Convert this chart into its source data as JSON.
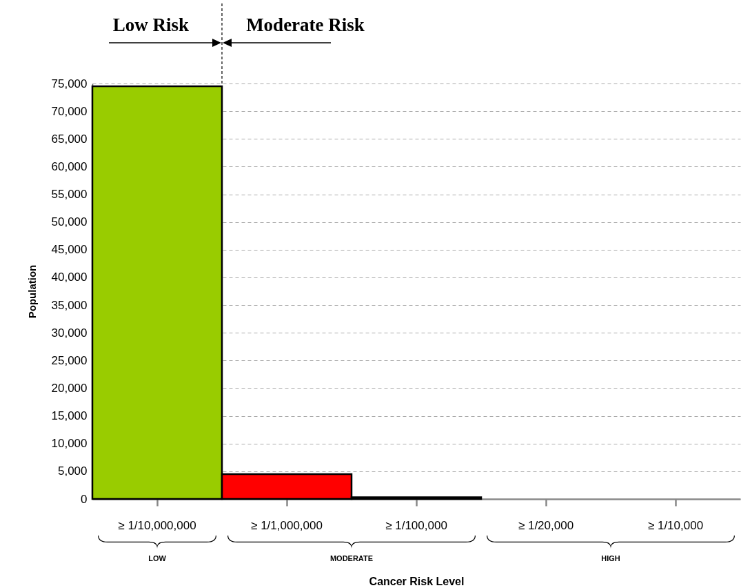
{
  "chart_data": {
    "type": "bar",
    "xlabel": "Cancer Risk Level",
    "ylabel": "Population",
    "categories": [
      "≥ 1/10,000,000",
      "≥ 1/1,000,000",
      "≥ 1/100,000",
      "≥ 1/20,000",
      "≥ 1/10,000"
    ],
    "values": [
      74500,
      4500,
      300,
      0,
      0
    ],
    "colors": [
      "#99cc00",
      "#ff0000",
      "#ff0000",
      "#ff0000",
      "#ff0000"
    ],
    "ylim": [
      0,
      75000
    ],
    "yticks": [
      0,
      {
        "value": 5000,
        "label": "5,000"
      },
      {
        "value": 10000,
        "label": "10,000"
      },
      {
        "value": 15000,
        "label": "15,000"
      },
      {
        "value": 20000,
        "label": "20,000"
      },
      {
        "value": 25000,
        "label": "25,000"
      },
      {
        "value": 30000,
        "label": "30,000"
      },
      {
        "value": 35000,
        "label": "35,000"
      },
      {
        "value": 40000,
        "label": "40,000"
      },
      {
        "value": 45000,
        "label": "45,000"
      },
      {
        "value": 50000,
        "label": "50,000"
      },
      {
        "value": 55000,
        "label": "55,000"
      },
      {
        "value": 60000,
        "label": "60,000"
      },
      {
        "value": 65000,
        "label": "65,000"
      },
      {
        "value": 70000,
        "label": "70,000"
      },
      {
        "value": 75000,
        "label": "75,000"
      }
    ],
    "grid": "y",
    "annotations": [
      "Low Risk",
      "Moderate Risk",
      "LOW",
      "MODERATE",
      "HIGH"
    ]
  }
}
